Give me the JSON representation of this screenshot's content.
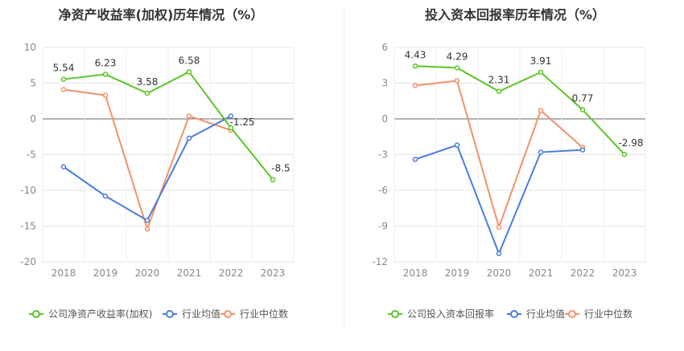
{
  "colors": {
    "company": "#5ac528",
    "avg": "#4a7ddb",
    "median": "#f2916b"
  },
  "chart_data": [
    {
      "type": "line",
      "title": "净资产收益率(加权)历年情况（%）",
      "categories": [
        "2018",
        "2019",
        "2020",
        "2021",
        "2022",
        "2023"
      ],
      "yticks": [
        10,
        5,
        0,
        -5,
        -10,
        -15,
        -20
      ],
      "ylim": [
        -20,
        10
      ],
      "legend_position": "bottom",
      "series": [
        {
          "name": "公司净资产收益率(加权)",
          "key": "company",
          "values": [
            5.54,
            6.23,
            3.58,
            6.58,
            -1.25,
            -8.5
          ],
          "labels": [
            "5.54",
            "6.23",
            "3.58",
            "6.58",
            "-1.25",
            "-8.5"
          ]
        },
        {
          "name": "行业均值",
          "key": "avg",
          "values": [
            -6.7,
            -10.8,
            -14.2,
            -2.7,
            0.4,
            null
          ]
        },
        {
          "name": "行业中位数",
          "key": "median",
          "values": [
            4.1,
            3.3,
            -15.4,
            0.4,
            -1.6,
            null
          ]
        }
      ]
    },
    {
      "type": "line",
      "title": "投入资本回报率历年情况（%）",
      "categories": [
        "2018",
        "2019",
        "2020",
        "2021",
        "2022",
        "2023"
      ],
      "yticks": [
        6,
        3,
        0,
        -3,
        -6,
        -9,
        -12
      ],
      "ylim": [
        -12,
        6
      ],
      "legend_position": "bottom",
      "series": [
        {
          "name": "公司投入资本回报率",
          "key": "company",
          "values": [
            4.43,
            4.29,
            2.31,
            3.91,
            0.77,
            -2.98
          ],
          "labels": [
            "4.43",
            "4.29",
            "2.31",
            "3.91",
            "0.77",
            "-2.98"
          ]
        },
        {
          "name": "行业均值",
          "key": "avg",
          "values": [
            -3.4,
            -2.2,
            -11.3,
            -2.8,
            -2.6,
            null
          ]
        },
        {
          "name": "行业中位数",
          "key": "median",
          "values": [
            2.8,
            3.2,
            -9.1,
            0.7,
            -2.4,
            null
          ]
        }
      ]
    }
  ]
}
